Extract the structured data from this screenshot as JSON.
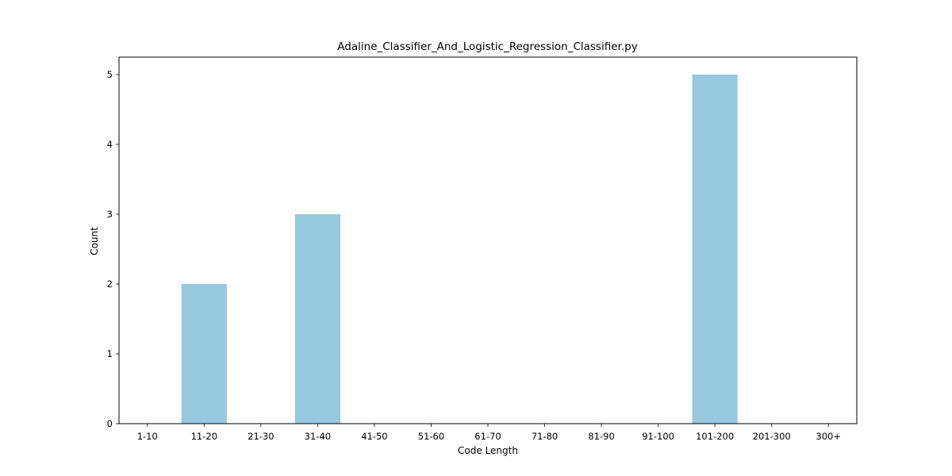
{
  "chart_data": {
    "type": "bar",
    "title": "Adaline_Classifier_And_Logistic_Regression_Classifier.py",
    "xlabel": "Code Length",
    "ylabel": "Count",
    "categories": [
      "1-10",
      "11-20",
      "21-30",
      "31-40",
      "41-50",
      "51-60",
      "61-70",
      "71-80",
      "81-90",
      "91-100",
      "101-200",
      "201-300",
      "300+"
    ],
    "values": [
      0,
      2,
      0,
      3,
      0,
      0,
      0,
      0,
      0,
      0,
      5,
      0,
      0
    ],
    "yticks": [
      "0",
      "1",
      "2",
      "3",
      "4",
      "5"
    ],
    "ylim": [
      0,
      5.25
    ],
    "grid": false,
    "colors": {
      "bar": "#96c9dd",
      "axis": "#000000"
    }
  }
}
